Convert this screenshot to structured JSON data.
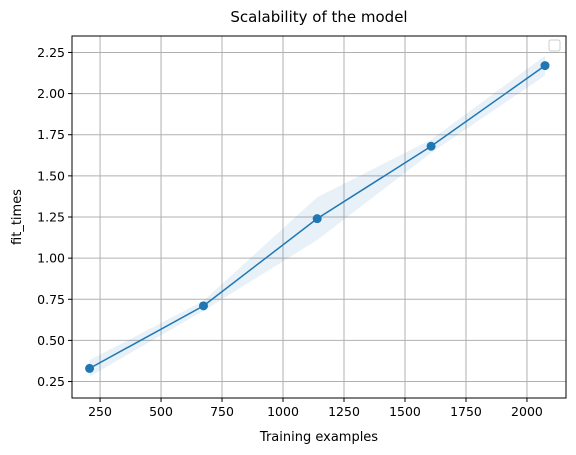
{
  "chart_data": {
    "type": "line",
    "title": "Scalability of the model",
    "xlabel": "Training examples",
    "ylabel": "fit_times",
    "xlim": [
      135,
      2160
    ],
    "ylim": [
      0.15,
      2.35
    ],
    "xticks": [
      250,
      500,
      750,
      1000,
      1250,
      1500,
      1750,
      2000
    ],
    "yticks": [
      0.25,
      0.5,
      0.75,
      1.0,
      1.25,
      1.5,
      1.75,
      2.0,
      2.25
    ],
    "xtick_labels": [
      "250",
      "500",
      "750",
      "1000",
      "1250",
      "1500",
      "1750",
      "2000"
    ],
    "ytick_labels": [
      "0.25",
      "0.50",
      "0.75",
      "1.00",
      "1.25",
      "1.50",
      "1.75",
      "2.00",
      "2.25"
    ],
    "grid": true,
    "legend": "top-right (empty)",
    "series": [
      {
        "x": [
          207,
          674,
          1140,
          1607,
          2074
        ],
        "values": [
          0.33,
          0.71,
          1.24,
          1.68,
          2.17
        ],
        "lower": [
          0.28,
          0.68,
          1.11,
          1.64,
          2.11
        ],
        "upper": [
          0.38,
          0.74,
          1.37,
          1.72,
          2.23
        ],
        "color": "#1f77b4",
        "band_color": "#1f77b4"
      }
    ]
  }
}
